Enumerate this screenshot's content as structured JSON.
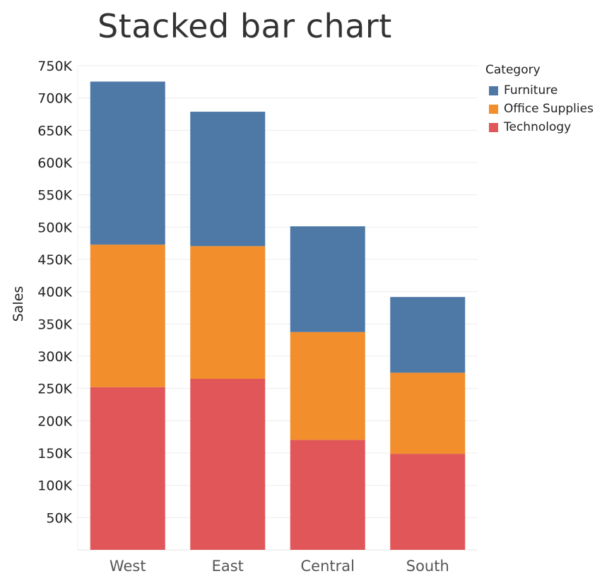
{
  "chart_data": {
    "type": "bar",
    "stacked": true,
    "title": "Stacked bar chart",
    "xlabel": "",
    "ylabel": "Sales",
    "categories": [
      "West",
      "East",
      "Central",
      "South"
    ],
    "ylim": [
      0,
      750000
    ],
    "yticks": [
      50000,
      100000,
      150000,
      200000,
      250000,
      300000,
      350000,
      400000,
      450000,
      500000,
      550000,
      600000,
      650000,
      700000,
      750000
    ],
    "ytick_labels": [
      "50K",
      "100K",
      "150K",
      "200K",
      "250K",
      "300K",
      "350K",
      "400K",
      "450K",
      "500K",
      "550K",
      "600K",
      "650K",
      "700K",
      "750K"
    ],
    "grid": true,
    "legend": {
      "title": "Category",
      "placement": "top-right"
    },
    "series": [
      {
        "name": "Technology",
        "color": "#e15759",
        "values": [
          251991,
          264973,
          170416,
          148771
        ]
      },
      {
        "name": "Office Supplies",
        "color": "#f28e2b",
        "values": [
          220853,
          205516,
          167026,
          125651
        ]
      },
      {
        "name": "Furniture",
        "color": "#4e79a7",
        "values": [
          252612,
          208291,
          163797,
          117299
        ]
      }
    ],
    "legend_order": [
      "Furniture",
      "Office Supplies",
      "Technology"
    ]
  }
}
